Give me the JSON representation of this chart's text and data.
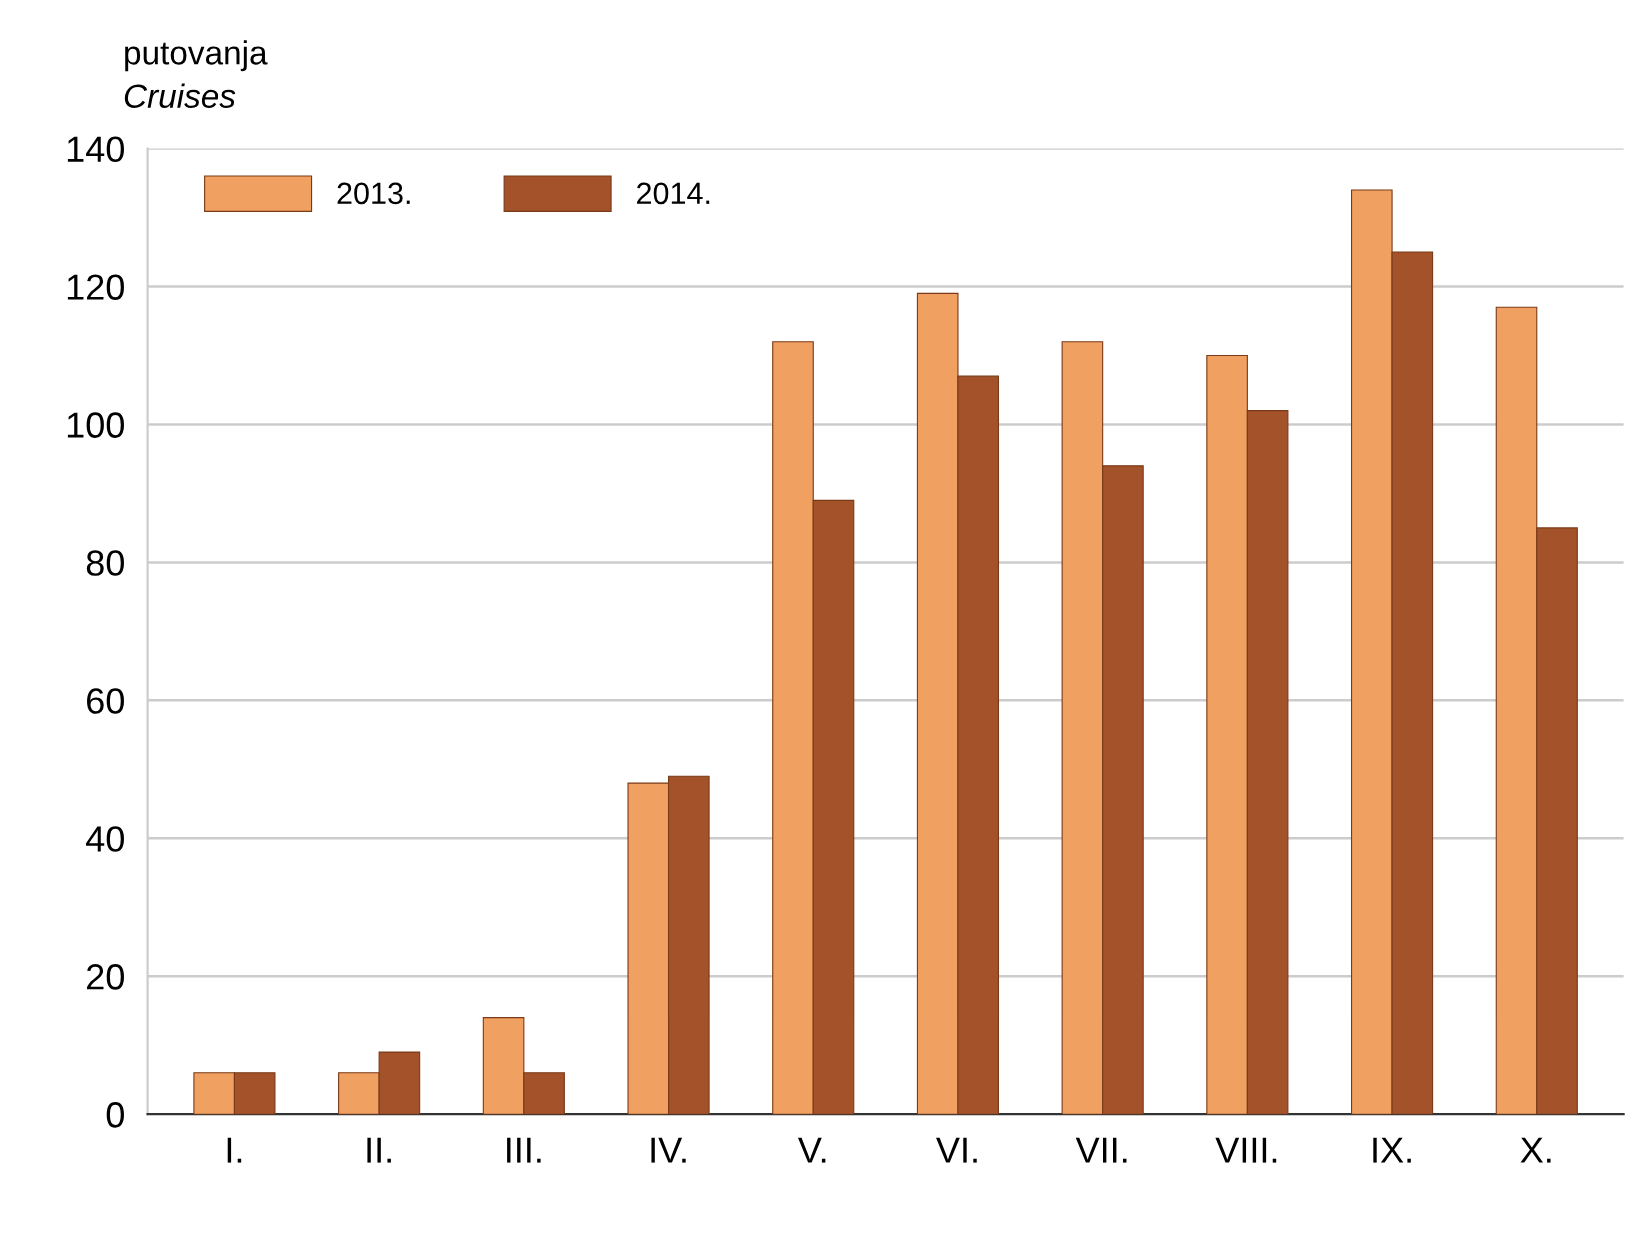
{
  "chart_data": {
    "type": "bar",
    "ylabel": "putovanja",
    "annotations": [
      "Cruises"
    ],
    "categories": [
      "I.",
      "II.",
      "III.",
      "IV.",
      "V.",
      "VI.",
      "VII.",
      "VIII.",
      "IX.",
      "X."
    ],
    "series": [
      {
        "name": "2013.",
        "color": "#f0a060",
        "values": [
          6,
          6,
          14,
          48,
          112,
          119,
          112,
          110,
          134,
          117
        ]
      },
      {
        "name": "2014.",
        "color": "#a3522a",
        "values": [
          6,
          9,
          6,
          49,
          89,
          107,
          94,
          102,
          125,
          85
        ]
      }
    ],
    "ylim": [
      0,
      140
    ],
    "yticks": [
      0,
      20,
      40,
      60,
      80,
      100,
      120,
      140
    ],
    "grid": "y",
    "legend": "top left"
  }
}
